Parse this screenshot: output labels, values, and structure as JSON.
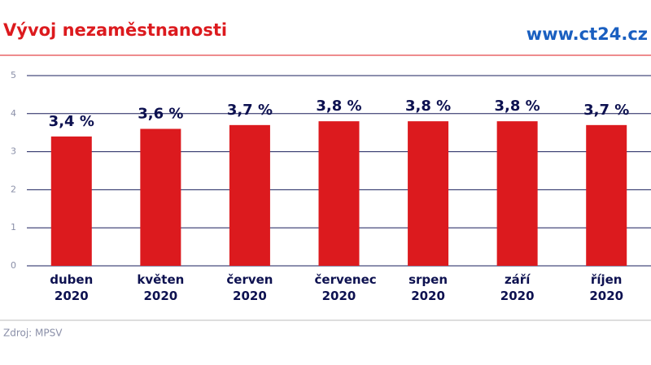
{
  "chart_data": {
    "type": "bar",
    "title": "Vývoj nezaměstnanosti",
    "site": "www.ct24.cz",
    "source": "Zdroj: MPSV",
    "categories": [
      "duben 2020",
      "květen 2020",
      "červen 2020",
      "červenec 2020",
      "srpen 2020",
      "září 2020",
      "říjen 2020"
    ],
    "values": [
      3.4,
      3.6,
      3.7,
      3.8,
      3.8,
      3.8,
      3.7
    ],
    "value_labels": [
      "3,4 %",
      "3,6 %",
      "3,7 %",
      "3,8 %",
      "3,8 %",
      "3,8 %",
      "3,7 %"
    ],
    "color": "#dc1a1e",
    "ylim": [
      0,
      5
    ],
    "yticks": [
      0,
      1,
      2,
      3,
      4,
      5
    ],
    "grid": true
  }
}
